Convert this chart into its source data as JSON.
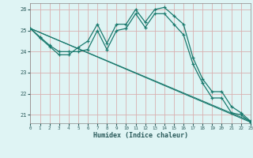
{
  "xlabel": "Humidex (Indice chaleur)",
  "background_color": "#dff4f4",
  "line_color": "#1a7a6e",
  "grid_color": "#d8b0b0",
  "spine_color": "#888888",
  "xlim": [
    0,
    23
  ],
  "ylim": [
    20.6,
    26.3
  ],
  "yticks": [
    21,
    22,
    23,
    24,
    25,
    26
  ],
  "xticks": [
    0,
    1,
    2,
    3,
    4,
    5,
    6,
    7,
    8,
    9,
    10,
    11,
    12,
    13,
    14,
    15,
    16,
    17,
    18,
    19,
    20,
    21,
    22,
    23
  ],
  "line1_x": [
    0,
    1,
    2,
    3,
    4,
    5,
    6,
    7,
    8,
    9,
    10,
    11,
    12,
    13,
    14,
    15,
    16,
    17,
    18,
    19,
    20,
    21,
    22,
    23
  ],
  "line1_y": [
    25.1,
    24.7,
    24.3,
    24.0,
    24.0,
    24.0,
    24.1,
    25.0,
    24.1,
    25.0,
    25.1,
    25.8,
    25.15,
    25.8,
    25.8,
    25.3,
    24.8,
    23.4,
    22.5,
    21.8,
    21.8,
    21.1,
    21.0,
    20.65
  ],
  "line2_x": [
    0,
    1,
    2,
    3,
    4,
    5,
    6,
    7,
    8,
    9,
    10,
    11,
    12,
    13,
    14,
    15,
    16,
    17,
    18,
    19,
    20,
    21,
    22,
    23
  ],
  "line2_y": [
    25.1,
    24.65,
    24.25,
    23.85,
    23.85,
    24.2,
    24.5,
    25.3,
    24.4,
    25.3,
    25.3,
    26.0,
    25.4,
    26.0,
    26.1,
    25.7,
    25.3,
    23.7,
    22.7,
    22.1,
    22.1,
    21.4,
    21.1,
    20.7
  ],
  "line3_x": [
    0,
    23
  ],
  "line3_y": [
    25.1,
    20.65
  ],
  "line4_x": [
    0,
    23
  ],
  "line4_y": [
    25.1,
    20.7
  ]
}
